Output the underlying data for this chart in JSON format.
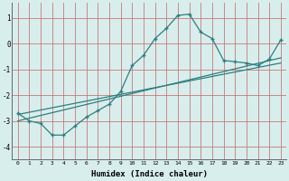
{
  "xlabel": "Humidex (Indice chaleur)",
  "ylabel": "",
  "bg_color": "#d8eeed",
  "grid_color": "#c87878",
  "line_color": "#2d7f7f",
  "xlim": [
    -0.5,
    23.5
  ],
  "ylim": [
    -4.5,
    1.6
  ],
  "yticks": [
    -4,
    -3,
    -2,
    -1,
    0,
    1
  ],
  "xticks": [
    0,
    1,
    2,
    3,
    4,
    5,
    6,
    7,
    8,
    9,
    10,
    11,
    12,
    13,
    14,
    15,
    16,
    17,
    18,
    19,
    20,
    21,
    22,
    23
  ],
  "curve_x": [
    0,
    1,
    2,
    3,
    4,
    5,
    6,
    7,
    8,
    9,
    10,
    11,
    12,
    13,
    14,
    15,
    16,
    17,
    18,
    19,
    20,
    21,
    22,
    23
  ],
  "curve_y": [
    -2.7,
    -3.0,
    -3.1,
    -3.55,
    -3.55,
    -3.2,
    -2.85,
    -2.6,
    -2.35,
    -1.85,
    -0.85,
    -0.45,
    0.2,
    0.6,
    1.1,
    1.15,
    0.45,
    0.2,
    -0.65,
    -0.7,
    -0.75,
    -0.85,
    -0.6,
    0.15
  ],
  "line1_x": [
    0,
    23
  ],
  "line1_y": [
    -3.0,
    -0.55
  ],
  "line2_x": [
    0,
    23
  ],
  "line2_y": [
    -2.75,
    -0.75
  ]
}
